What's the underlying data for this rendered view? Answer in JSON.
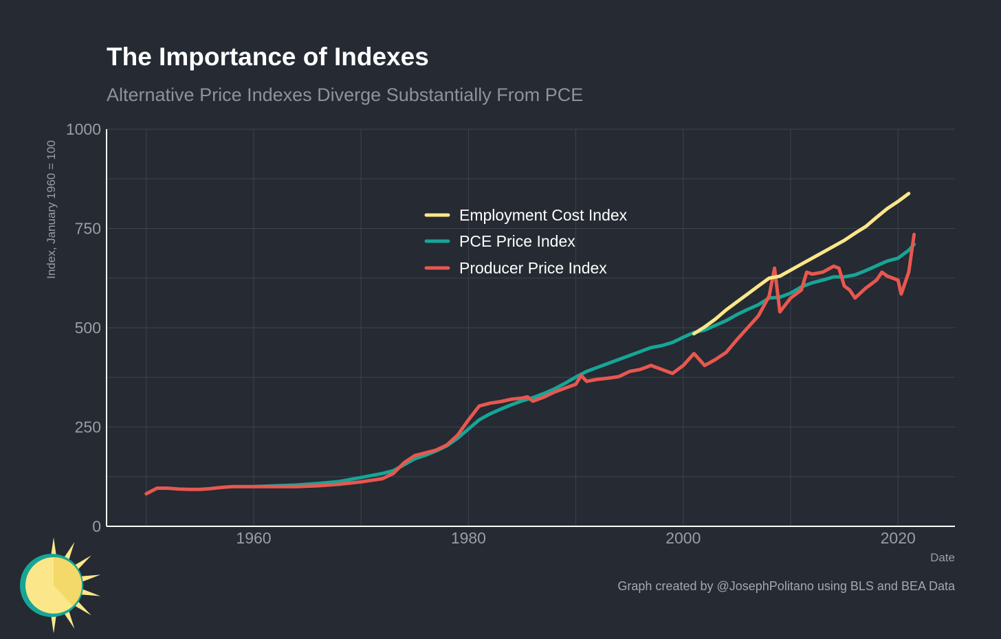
{
  "colors": {
    "background": "#252a33",
    "grid": "#3e444e",
    "axis": "#ffffff",
    "employment": "#fbe789",
    "pce": "#17a596",
    "ppi": "#e8574f"
  },
  "caption": "Graph created by @JosephPolitano using BLS and BEA Data",
  "logo_icon": "sun-logo-icon",
  "chart_data": {
    "type": "line",
    "title": "The Importance of Indexes",
    "subtitle": "Alternative Price Indexes Diverge Substantially From PCE",
    "xlabel": "Date",
    "ylabel": "Index, January 1960 = 100",
    "xlim": [
      1946.3,
      2025.3
    ],
    "ylim": [
      0,
      1000
    ],
    "x_ticks": [
      1960,
      1980,
      2000,
      2020
    ],
    "x_tick_labels": [
      "1960",
      "1980",
      "2000",
      "2020"
    ],
    "y_ticks": [
      0,
      250,
      500,
      750,
      1000
    ],
    "y_tick_labels": [
      "0",
      "250",
      "500",
      "750",
      "1000"
    ],
    "grid": true,
    "legend_position": "top-center",
    "series": [
      {
        "name": "Employment Cost Index",
        "color": "#fbe789",
        "points": [
          [
            2001,
            485
          ],
          [
            2002,
            502
          ],
          [
            2003,
            522
          ],
          [
            2004,
            545
          ],
          [
            2005,
            565
          ],
          [
            2006,
            585
          ],
          [
            2007,
            605
          ],
          [
            2008,
            625
          ],
          [
            2009,
            630
          ],
          [
            2010,
            645
          ],
          [
            2011,
            660
          ],
          [
            2012,
            675
          ],
          [
            2013,
            690
          ],
          [
            2014,
            705
          ],
          [
            2015,
            720
          ],
          [
            2016,
            738
          ],
          [
            2017,
            755
          ],
          [
            2018,
            778
          ],
          [
            2019,
            800
          ],
          [
            2020,
            818
          ],
          [
            2021,
            838
          ]
        ]
      },
      {
        "name": "PCE Price Index",
        "color": "#17a596",
        "points": [
          [
            1960,
            100
          ],
          [
            1962,
            102
          ],
          [
            1964,
            104
          ],
          [
            1966,
            108
          ],
          [
            1968,
            113
          ],
          [
            1970,
            123
          ],
          [
            1972,
            133
          ],
          [
            1973,
            140
          ],
          [
            1974,
            155
          ],
          [
            1975,
            170
          ],
          [
            1976,
            179
          ],
          [
            1977,
            190
          ],
          [
            1978,
            203
          ],
          [
            1979,
            222
          ],
          [
            1980,
            245
          ],
          [
            1981,
            268
          ],
          [
            1982,
            283
          ],
          [
            1983,
            295
          ],
          [
            1984,
            306
          ],
          [
            1985,
            316
          ],
          [
            1986,
            324
          ],
          [
            1987,
            334
          ],
          [
            1988,
            346
          ],
          [
            1989,
            360
          ],
          [
            1990,
            376
          ],
          [
            1991,
            390
          ],
          [
            1992,
            400
          ],
          [
            1993,
            410
          ],
          [
            1994,
            420
          ],
          [
            1995,
            430
          ],
          [
            1996,
            440
          ],
          [
            1997,
            450
          ],
          [
            1998,
            455
          ],
          [
            1999,
            463
          ],
          [
            2000,
            476
          ],
          [
            2001,
            488
          ],
          [
            2002,
            494
          ],
          [
            2003,
            506
          ],
          [
            2004,
            518
          ],
          [
            2005,
            533
          ],
          [
            2006,
            546
          ],
          [
            2007,
            558
          ],
          [
            2008,
            575
          ],
          [
            2009,
            577
          ],
          [
            2010,
            587
          ],
          [
            2011,
            603
          ],
          [
            2012,
            613
          ],
          [
            2013,
            620
          ],
          [
            2014,
            628
          ],
          [
            2015,
            628
          ],
          [
            2016,
            633
          ],
          [
            2017,
            644
          ],
          [
            2018,
            656
          ],
          [
            2019,
            668
          ],
          [
            2020,
            675
          ],
          [
            2021,
            695
          ],
          [
            2021.5,
            710
          ]
        ]
      },
      {
        "name": "Producer Price Index",
        "color": "#e8574f",
        "points": [
          [
            1950,
            82
          ],
          [
            1951,
            96
          ],
          [
            1952,
            96
          ],
          [
            1953,
            94
          ],
          [
            1954,
            93
          ],
          [
            1955,
            93
          ],
          [
            1956,
            95
          ],
          [
            1957,
            98
          ],
          [
            1958,
            100
          ],
          [
            1959,
            100
          ],
          [
            1960,
            100
          ],
          [
            1962,
            100
          ],
          [
            1964,
            100
          ],
          [
            1966,
            102
          ],
          [
            1968,
            106
          ],
          [
            1970,
            112
          ],
          [
            1972,
            120
          ],
          [
            1973,
            133
          ],
          [
            1974,
            160
          ],
          [
            1975,
            178
          ],
          [
            1976,
            185
          ],
          [
            1977,
            192
          ],
          [
            1978,
            205
          ],
          [
            1979,
            230
          ],
          [
            1980,
            268
          ],
          [
            1981,
            303
          ],
          [
            1982,
            310
          ],
          [
            1983,
            314
          ],
          [
            1984,
            320
          ],
          [
            1985,
            323
          ],
          [
            1985.5,
            326
          ],
          [
            1986,
            315
          ],
          [
            1987,
            325
          ],
          [
            1988,
            338
          ],
          [
            1989,
            348
          ],
          [
            1990,
            358
          ],
          [
            1990.5,
            380
          ],
          [
            1991,
            365
          ],
          [
            1992,
            370
          ],
          [
            1993,
            373
          ],
          [
            1994,
            377
          ],
          [
            1995,
            390
          ],
          [
            1996,
            395
          ],
          [
            1997,
            405
          ],
          [
            1998,
            395
          ],
          [
            1999,
            385
          ],
          [
            2000,
            405
          ],
          [
            2001,
            435
          ],
          [
            2001.5,
            420
          ],
          [
            2002,
            405
          ],
          [
            2003,
            420
          ],
          [
            2004,
            438
          ],
          [
            2005,
            470
          ],
          [
            2006,
            500
          ],
          [
            2007,
            530
          ],
          [
            2008,
            580
          ],
          [
            2008.5,
            650
          ],
          [
            2009,
            540
          ],
          [
            2010,
            575
          ],
          [
            2011,
            595
          ],
          [
            2011.5,
            640
          ],
          [
            2012,
            635
          ],
          [
            2013,
            640
          ],
          [
            2014,
            655
          ],
          [
            2014.5,
            650
          ],
          [
            2015,
            605
          ],
          [
            2015.5,
            595
          ],
          [
            2016,
            575
          ],
          [
            2017,
            600
          ],
          [
            2018,
            620
          ],
          [
            2018.5,
            640
          ],
          [
            2019,
            630
          ],
          [
            2020,
            620
          ],
          [
            2020.3,
            585
          ],
          [
            2021,
            640
          ],
          [
            2021.5,
            735
          ]
        ]
      }
    ]
  }
}
